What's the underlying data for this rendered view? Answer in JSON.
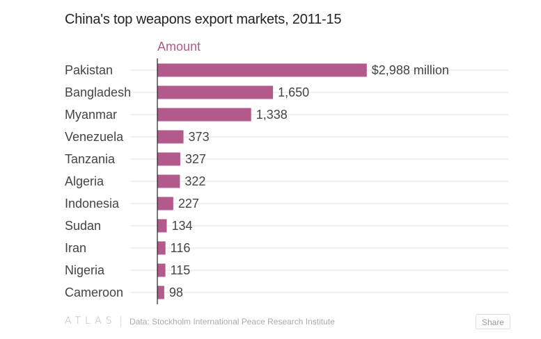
{
  "chart_data": {
    "type": "bar",
    "orientation": "horizontal",
    "title": "China's top weapons export markets, 2011-15",
    "series_name": "Amount",
    "categories": [
      "Pakistan",
      "Bangladesh",
      "Myanmar",
      "Venezuela",
      "Tanzania",
      "Algeria",
      "Indonesia",
      "Sudan",
      "Iran",
      "Nigeria",
      "Cameroon"
    ],
    "values": [
      2988,
      1650,
      1338,
      373,
      327,
      322,
      227,
      134,
      116,
      115,
      98
    ],
    "value_labels": [
      "$2,988 million",
      "1,650",
      "1,338",
      "373",
      "327",
      "322",
      "227",
      "134",
      "116",
      "115",
      "98"
    ],
    "xlim": [
      0,
      3000
    ],
    "grid": true,
    "bar_color": "#b15a8b",
    "header_color": "#b15a8b"
  },
  "footer": {
    "logo": "ATLAS",
    "source": "Data: Stockholm International Peace Research Institute",
    "share_label": "Share"
  }
}
